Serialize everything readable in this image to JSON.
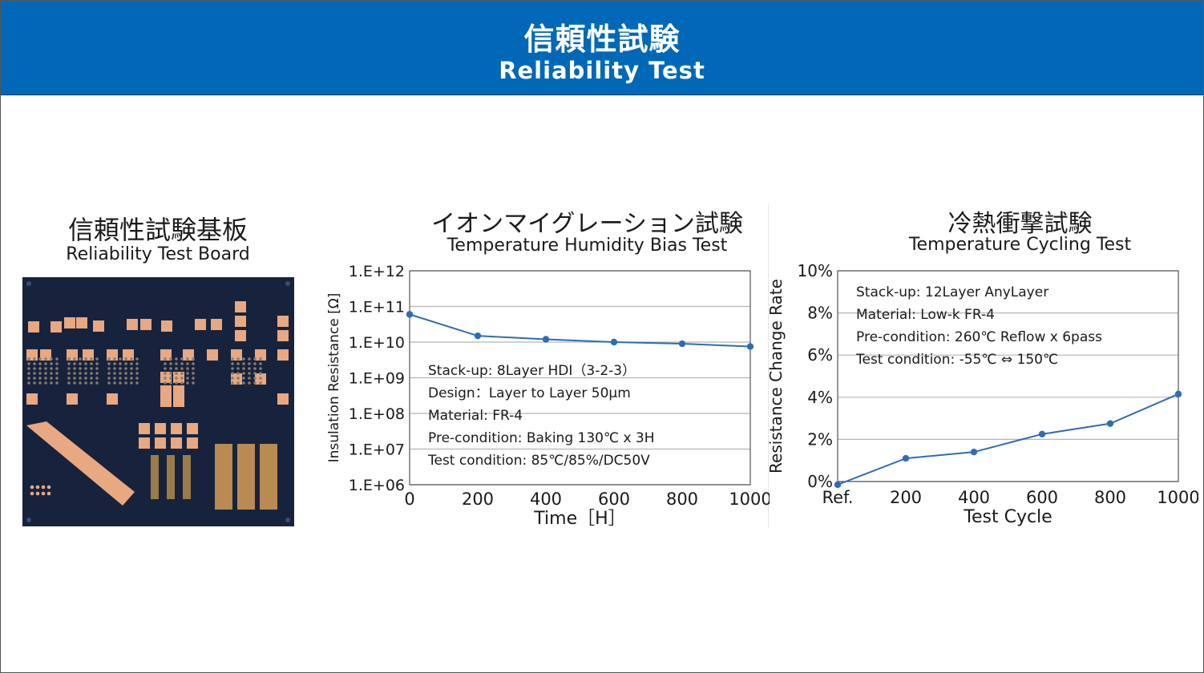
{
  "header": {
    "title_jp": "信頼性試験",
    "title_en": "Reliability Test"
  },
  "board": {
    "title_jp": "信頼性試験基板",
    "title_en": "Reliability Test Board"
  },
  "colors": {
    "banner": "#0068b7",
    "series": "#2f6db3",
    "grid": "#b5b5b5",
    "board": "#17233d",
    "pad": "#e7a882"
  },
  "chart_data": [
    {
      "type": "line",
      "title_jp": "イオンマイグレーション試験",
      "title": "Temperature Humidity Bias Test",
      "xlabel": "Time［H］",
      "ylabel": "Insulation Resistance [Ω]",
      "yscale": "log",
      "x_ticks": [
        "0",
        "200",
        "400",
        "600",
        "800",
        "1000"
      ],
      "y_ticks": [
        "1.E+06",
        "1.E+07",
        "1.E+08",
        "1.E+09",
        "1.E+10",
        "1.E+11",
        "1.E+12"
      ],
      "xlim": [
        0,
        1000
      ],
      "ylim": [
        1000000,
        1000000000000
      ],
      "x": [
        0,
        200,
        400,
        600,
        800,
        1000
      ],
      "y": [
        60000000000,
        15000000000,
        12000000000,
        10000000000,
        9000000000,
        7500000000
      ],
      "grid": "horizontal",
      "annotations": [
        "Stack-up: 8Layer HDI（3-2-3）",
        "Design：Layer to Layer 50μm",
        "Material: FR-4",
        "Pre-condition: Baking 130℃ x 3H",
        "Test condition: 85℃/85%/DC50V"
      ]
    },
    {
      "type": "line",
      "title_jp": "冷熱衝撃試験",
      "title": "Temperature Cycling Test",
      "xlabel": "Test Cycle",
      "ylabel": "Resistance Change Rate",
      "x_ticks": [
        "Ref.",
        "200",
        "400",
        "600",
        "800",
        "1000"
      ],
      "y_ticks": [
        "0%",
        "2%",
        "4%",
        "6%",
        "8%",
        "10%"
      ],
      "xlim": [
        0,
        1000
      ],
      "ylim": [
        0,
        10
      ],
      "x": [
        0,
        200,
        400,
        600,
        800,
        1000
      ],
      "y": [
        -0.15,
        1.1,
        1.4,
        2.25,
        2.75,
        4.15
      ],
      "grid": "horizontal",
      "annotations": [
        "Stack-up: 12Layer AnyLayer",
        "Material: Low-k FR-4",
        "Pre-condition: 260℃ Reflow x 6pass",
        "Test condition: -55℃ ⇔ 150℃"
      ]
    }
  ]
}
